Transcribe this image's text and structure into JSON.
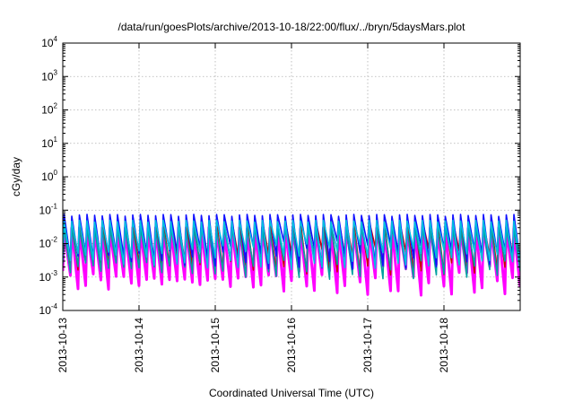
{
  "chart_data": {
    "type": "line",
    "title": "/data/run/goesPlots/archive/2013-10-18/22:00/flux/../bryn/5daysMars.plot",
    "xlabel": "Coordinated Universal Time (UTC)",
    "ylabel": "cGy/day",
    "y_scale": "log",
    "ylim": [
      0.0001,
      10000
    ],
    "y_ticks": [
      {
        "base": "10",
        "exp": "-4"
      },
      {
        "base": "10",
        "exp": "-3"
      },
      {
        "base": "10",
        "exp": "-2"
      },
      {
        "base": "10",
        "exp": "-1"
      },
      {
        "base": "10",
        "exp": "0"
      },
      {
        "base": "10",
        "exp": "1"
      },
      {
        "base": "10",
        "exp": "2"
      },
      {
        "base": "10",
        "exp": "3"
      },
      {
        "base": "10",
        "exp": "4"
      }
    ],
    "xlim": [
      "2013-10-13",
      "2013-10-19"
    ],
    "x_ticks": [
      "2013-10-13",
      "2013-10-14",
      "2013-10-15",
      "2013-10-16",
      "2013-10-17",
      "2013-10-18"
    ],
    "grid": true,
    "pulses_per_day": 10,
    "series": [
      {
        "color": "#ff00ff",
        "peak": 0.03,
        "trough": 0.0005
      },
      {
        "color": "#cc0000",
        "peak": 0.05,
        "trough": 0.002
      },
      {
        "color": "#00a0a0",
        "peak": 0.03,
        "trough": 0.0015
      },
      {
        "color": "#1010ff",
        "peak": 0.075,
        "trough": 0.003
      },
      {
        "color": "#00c0e0",
        "peak": 0.05,
        "trough": 0.003
      }
    ]
  }
}
